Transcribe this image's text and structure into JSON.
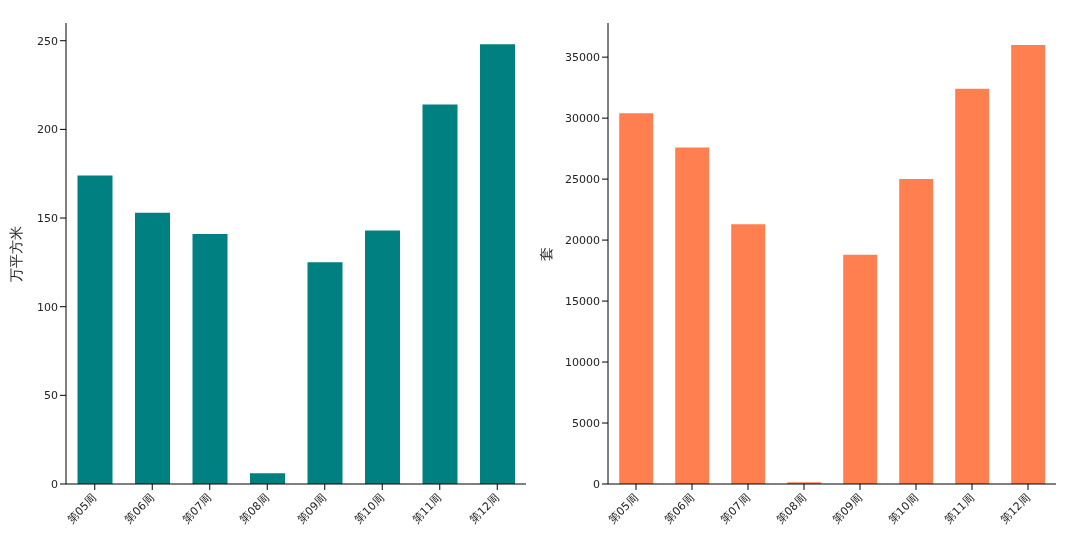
{
  "chart_data": [
    {
      "type": "bar",
      "ylabel": "万平方米",
      "categories": [
        "第05周",
        "第06周",
        "第07周",
        "第08周",
        "第09周",
        "第10周",
        "第11周",
        "第12周"
      ],
      "values": [
        174,
        153,
        141,
        6,
        125,
        143,
        214,
        248
      ],
      "color": "#008080",
      "ylim": [
        0,
        260
      ],
      "yticks": [
        0,
        50,
        100,
        150,
        200,
        250
      ],
      "grid": false
    },
    {
      "type": "bar",
      "ylabel": "套",
      "categories": [
        "第05周",
        "第06周",
        "第07周",
        "第08周",
        "第09周",
        "第10周",
        "第11周",
        "第12周"
      ],
      "values": [
        30400,
        27600,
        21300,
        150,
        18800,
        25000,
        32400,
        36000
      ],
      "color": "#ff7f50",
      "ylim": [
        0,
        37800
      ],
      "yticks": [
        0,
        5000,
        10000,
        15000,
        20000,
        25000,
        30000,
        35000
      ],
      "grid": false
    }
  ]
}
